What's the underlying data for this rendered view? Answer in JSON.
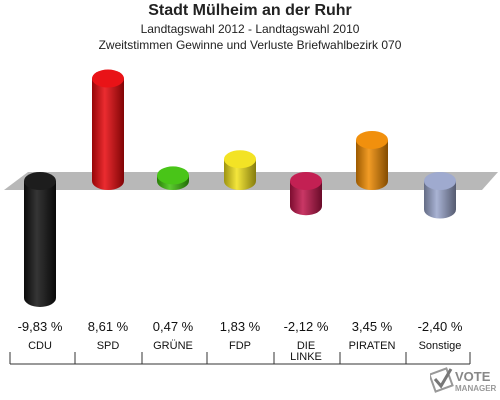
{
  "title": "Stadt Mülheim an der Ruhr",
  "subtitle1": "Landtagswahl 2012 - Landtagswahl 2010",
  "subtitle2": "Zweitstimmen Gewinne und Verluste Briefwahlbezirk 070",
  "logo": {
    "line1": "VOTE",
    "line2": "MANAGER"
  },
  "chart_data": {
    "type": "bar",
    "categories": [
      "CDU",
      "SPD",
      "GRÜNE",
      "FDP",
      "DIE LINKE",
      "PIRATEN",
      "Sonstige"
    ],
    "category_lines": [
      [
        "CDU"
      ],
      [
        "SPD"
      ],
      [
        "GRÜNE"
      ],
      [
        "FDP"
      ],
      [
        "DIE",
        "LINKE"
      ],
      [
        "PIRATEN"
      ],
      [
        "Sonstige"
      ]
    ],
    "values": [
      -9.83,
      8.61,
      0.47,
      1.83,
      -2.12,
      3.45,
      -2.4
    ],
    "value_labels": [
      "-9,83 %",
      "8,61 %",
      "0,47 %",
      "1,83 %",
      "-2,12 %",
      "3,45 %",
      "-2,40 %"
    ],
    "colors": [
      "#111111",
      "#e8070b",
      "#3fc20c",
      "#f2e21a",
      "#c0144a",
      "#f08a00",
      "#9aa6cc"
    ]
  }
}
